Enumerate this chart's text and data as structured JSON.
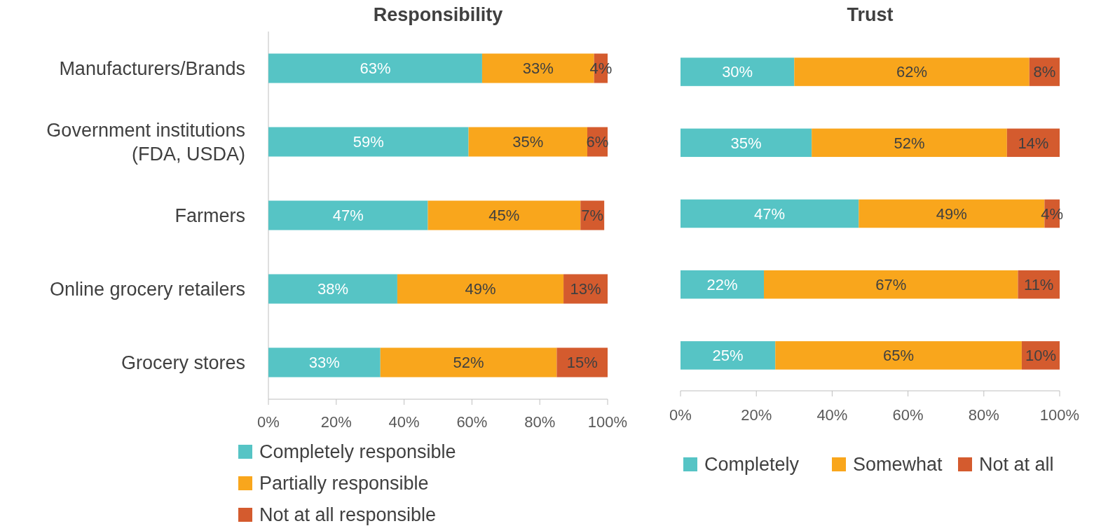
{
  "chart_data": [
    {
      "type": "bar",
      "title": "Responsibility",
      "orientation": "horizontal",
      "stacked": true,
      "legend": "bottom",
      "categories": [
        "Manufacturers/Brands",
        "Government institutions (FDA, USDA)",
        "Farmers",
        "Online grocery retailers",
        "Grocery stores"
      ],
      "xlim": [
        0,
        100
      ],
      "xticks": [
        {
          "value": 0,
          "label": "0%"
        },
        {
          "value": 20,
          "label": "20%"
        },
        {
          "value": 40,
          "label": "40%"
        },
        {
          "value": 60,
          "label": "60%"
        },
        {
          "value": 80,
          "label": "80%"
        },
        {
          "value": 100,
          "label": "100%"
        }
      ],
      "series": [
        {
          "name": "Completely responsible",
          "color": "#56c4c5",
          "values": [
            63,
            59,
            47,
            38,
            33
          ],
          "value_labels": [
            "63%",
            "59%",
            "47%",
            "38%",
            "33%"
          ]
        },
        {
          "name": "Partially responsible",
          "color": "#f9a61c",
          "values": [
            33,
            35,
            45,
            49,
            52
          ],
          "value_labels": [
            "33%",
            "35%",
            "45%",
            "49%",
            "52%"
          ]
        },
        {
          "name": "Not at all responsible",
          "color": "#d45b2e",
          "values": [
            4,
            6,
            7,
            13,
            15
          ],
          "value_labels": [
            "4%",
            "6%",
            "7%",
            "13%",
            "15%"
          ]
        }
      ]
    },
    {
      "type": "bar",
      "title": "Trust",
      "orientation": "horizontal",
      "stacked": true,
      "legend": "bottom",
      "categories": [
        null,
        null,
        null,
        null,
        null
      ],
      "xlim": [
        0,
        100
      ],
      "xticks": [
        {
          "value": 0,
          "label": "0%"
        },
        {
          "value": 20,
          "label": "20%"
        },
        {
          "value": 40,
          "label": "40%"
        },
        {
          "value": 60,
          "label": "60%"
        },
        {
          "value": 80,
          "label": "80%"
        },
        {
          "value": 100,
          "label": "100%"
        }
      ],
      "series": [
        {
          "name": "Completely",
          "color": "#56c4c5",
          "values": [
            30,
            34.6,
            47,
            22,
            25
          ],
          "value_labels": [
            "30%",
            "35%",
            "47%",
            "22%",
            "25%"
          ]
        },
        {
          "name": "Somewhat",
          "color": "#f9a61c",
          "values": [
            62,
            51.5,
            49,
            67,
            65
          ],
          "value_labels": [
            "62%",
            "52%",
            "49%",
            "67%",
            "65%"
          ]
        },
        {
          "name": "Not at all",
          "color": "#d45b2e",
          "values": [
            8,
            13.9,
            4,
            11,
            10
          ],
          "value_labels": [
            "8%",
            "14%",
            "4%",
            "11%",
            "10%"
          ]
        }
      ]
    }
  ]
}
